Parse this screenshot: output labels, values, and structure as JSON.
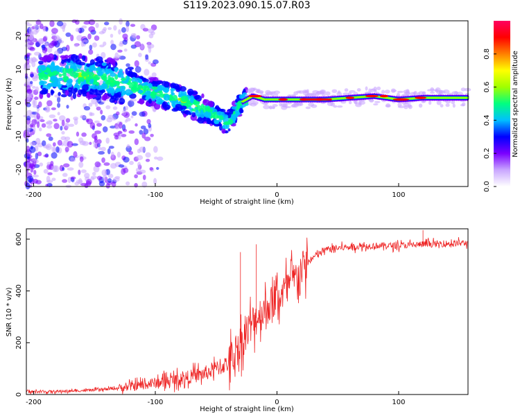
{
  "figure_title": "S119.2023.090.15.07.R03",
  "chart_data": [
    {
      "type": "heatmap",
      "xlabel": "Height of straight line (km)",
      "ylabel": "Frequency (Hz)",
      "xlim": [
        -206,
        157
      ],
      "ylim": [
        -25,
        24.5
      ],
      "xticks": [
        -200,
        -100,
        0,
        100
      ],
      "yticks": [
        -20,
        -10,
        0,
        10,
        20
      ],
      "colorbar": {
        "label": "Normalized spectral amplitude",
        "range": [
          0,
          1
        ],
        "ticks": [
          "0.0",
          "0.2",
          "0.4",
          "0.6",
          "0.8"
        ],
        "colors": [
          "#ffffff",
          "#c9a6ff",
          "#7a00ff",
          "#0000ff",
          "#00bfff",
          "#00ff80",
          "#a0ff00",
          "#ffff00",
          "#ff8000",
          "#ff0000",
          "#ff0060"
        ]
      },
      "ridge": {
        "x": [
          -180,
          -160,
          -140,
          -120,
          -100,
          -80,
          -60,
          -50,
          -42,
          -38,
          -30,
          -20,
          -10,
          0,
          20,
          40,
          60,
          80,
          100,
          120,
          150
        ],
        "y": [
          8,
          8,
          7,
          5,
          3,
          1,
          -2,
          -4,
          -6,
          -5,
          0,
          2,
          1,
          1,
          1,
          1,
          1.5,
          2,
          1,
          1.5,
          1.5
        ]
      },
      "grid": false
    },
    {
      "type": "line",
      "xlabel": "Height of straight line (km)",
      "ylabel": "SNR (10 * v/v)",
      "xlim": [
        -206,
        157
      ],
      "ylim": [
        0,
        640
      ],
      "xticks": [
        -200,
        -100,
        0,
        100
      ],
      "yticks": [
        0,
        200,
        400,
        600
      ],
      "color": "#ee2222",
      "trend": {
        "x": [
          -206,
          -180,
          -160,
          -140,
          -120,
          -100,
          -80,
          -60,
          -40,
          -30,
          -20,
          -10,
          0,
          10,
          20,
          30,
          40,
          60,
          80,
          100,
          120,
          157
        ],
        "y": [
          10,
          12,
          15,
          20,
          30,
          45,
          60,
          80,
          120,
          200,
          280,
          330,
          370,
          420,
          480,
          530,
          560,
          570,
          575,
          575,
          580,
          585
        ]
      },
      "spikes": [
        {
          "x": -30,
          "y": 550
        },
        {
          "x": -17,
          "y": 580
        },
        {
          "x": 120,
          "y": 635
        }
      ],
      "grid": false
    }
  ]
}
